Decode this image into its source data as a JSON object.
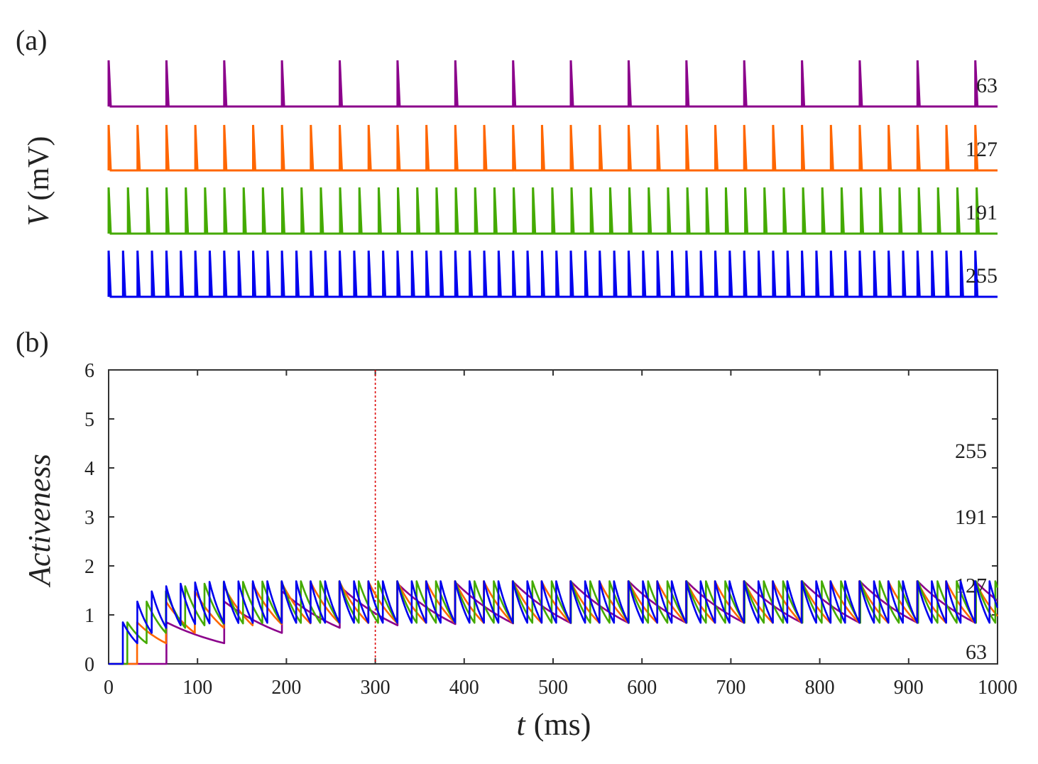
{
  "chart_data": [
    {
      "panel": "(a)",
      "type": "line",
      "ylabel_var": "V",
      "ylabel_unit": "(mV)",
      "x_range_ms": [
        0,
        1000
      ],
      "series": [
        {
          "name": "63",
          "color": "#8b008b",
          "spike_interval_ms": 65,
          "first_spike_ms": 0
        },
        {
          "name": "127",
          "color": "#ff6600",
          "spike_interval_ms": 32.5,
          "first_spike_ms": 0
        },
        {
          "name": "191",
          "color": "#44aa00",
          "spike_interval_ms": 21.7,
          "first_spike_ms": 0
        },
        {
          "name": "255",
          "color": "#0000ee",
          "spike_interval_ms": 16.25,
          "first_spike_ms": 0
        }
      ]
    },
    {
      "panel": "(b)",
      "type": "line",
      "xlabel_var": "t",
      "xlabel_unit": "(ms)",
      "ylabel": "Activeness",
      "xlim": [
        0,
        1000
      ],
      "ylim": [
        0,
        6
      ],
      "x_ticks": [
        0,
        100,
        200,
        300,
        400,
        500,
        600,
        700,
        800,
        900,
        1000
      ],
      "y_ticks": [
        0,
        1,
        2,
        3,
        4,
        5,
        6
      ],
      "marker_line_x": 300,
      "marker_line_color": "#dd0000",
      "series": [
        {
          "name": "63",
          "color": "#8b008b",
          "onset_ms": 65,
          "interval_ms": 65,
          "decay_rate": 0.7,
          "label_y": 0.25
        },
        {
          "name": "127",
          "color": "#ff6600",
          "onset_ms": 32,
          "interval_ms": 32.5,
          "decay_rate": 0.7,
          "label_y": 1.6
        },
        {
          "name": "191",
          "color": "#44aa00",
          "onset_ms": 21,
          "interval_ms": 21.7,
          "decay_rate": 0.7,
          "label_y": 3.0
        },
        {
          "name": "255",
          "color": "#0000ee",
          "onset_ms": 16,
          "interval_ms": 16.25,
          "decay_rate": 0.7,
          "label_y": 4.35
        }
      ]
    }
  ]
}
